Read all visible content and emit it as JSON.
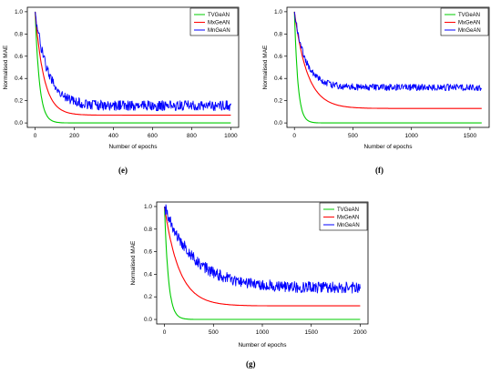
{
  "charts": [
    {
      "id": "e",
      "caption": "(e)",
      "chart_data": {
        "type": "line",
        "xlabel": "Number of epochs",
        "ylabel": "Normalised MAE",
        "xlim": [
          0,
          1000
        ],
        "ylim": [
          0,
          1.0
        ],
        "xticks": [
          0,
          200,
          400,
          600,
          800,
          1000
        ],
        "yticks": [
          0.0,
          0.2,
          0.4,
          0.6,
          0.8,
          1.0
        ],
        "legend_position": "top-right",
        "series": [
          {
            "name": "TVGeAN",
            "color": "#00cc00",
            "start": 1.0,
            "floor": 0.0,
            "tau": 22,
            "noise": 0.0
          },
          {
            "name": "MxGeAN",
            "color": "#ff0000",
            "start": 1.0,
            "floor": 0.07,
            "tau": 45,
            "noise": 0.0
          },
          {
            "name": "MnGeAN",
            "color": "#0000ff",
            "start": 1.0,
            "floor": 0.155,
            "tau": 65,
            "noise": 0.045
          }
        ]
      }
    },
    {
      "id": "f",
      "caption": "(f)",
      "chart_data": {
        "type": "line",
        "xlabel": "Number of epochs",
        "ylabel": "Normalised MAE",
        "xlim": [
          0,
          1600
        ],
        "ylim": [
          0,
          1.0
        ],
        "xticks": [
          0,
          500,
          1000,
          1500
        ],
        "yticks": [
          0.0,
          0.2,
          0.4,
          0.6,
          0.8,
          1.0
        ],
        "legend_position": "top-right",
        "series": [
          {
            "name": "TVGeAN",
            "color": "#00cc00",
            "start": 1.0,
            "floor": 0.0,
            "tau": 30,
            "noise": 0.0
          },
          {
            "name": "MxGeAN",
            "color": "#ff0000",
            "start": 1.0,
            "floor": 0.13,
            "tau": 110,
            "noise": 0.0
          },
          {
            "name": "MnGeAN",
            "color": "#0000ff",
            "start": 1.0,
            "floor": 0.32,
            "tau": 95,
            "noise": 0.03
          }
        ]
      }
    },
    {
      "id": "g",
      "caption": "(g)",
      "chart_data": {
        "type": "line",
        "xlabel": "Number of epochs",
        "ylabel": "Normalised MAE",
        "xlim": [
          0,
          2000
        ],
        "ylim": [
          0,
          1.0
        ],
        "xticks": [
          0,
          500,
          1000,
          1500,
          2000
        ],
        "yticks": [
          0.0,
          0.2,
          0.4,
          0.6,
          0.8,
          1.0
        ],
        "legend_position": "top-right",
        "series": [
          {
            "name": "TVGeAN",
            "color": "#00cc00",
            "start": 1.0,
            "floor": 0.0,
            "tau": 40,
            "noise": 0.0
          },
          {
            "name": "MxGeAN",
            "color": "#ff0000",
            "start": 1.0,
            "floor": 0.12,
            "tau": 150,
            "noise": 0.0
          },
          {
            "name": "MnGeAN",
            "color": "#0000ff",
            "start": 1.0,
            "floor": 0.28,
            "tau": 300,
            "noise": 0.05
          }
        ]
      }
    }
  ]
}
